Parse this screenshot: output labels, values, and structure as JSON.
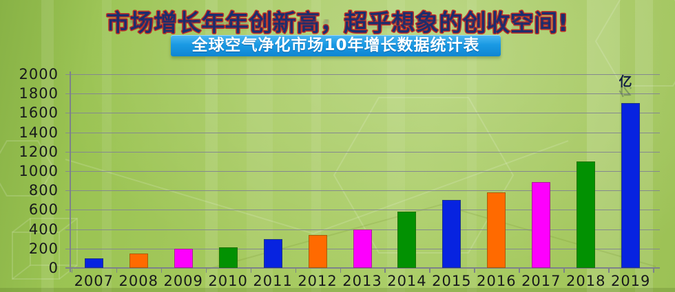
{
  "title": {
    "text": "市场增长年年创新高，超乎想象的创收空间!",
    "color": "#1c2d6d",
    "outline_color": "#c23126"
  },
  "banner": {
    "text": "全球空气净化市场10年增长数据统计表",
    "bg_color": "#1a9ae4",
    "text_color": "#ffffff"
  },
  "chart_data": {
    "type": "bar",
    "title": "全球空气净化市场10年增长数据统计表",
    "unit_label": "亿",
    "categories": [
      "2007",
      "2008",
      "2009",
      "2010",
      "2011",
      "2012",
      "2013",
      "2014",
      "2015",
      "2016",
      "2017",
      "2018",
      "2019"
    ],
    "values": [
      100,
      150,
      200,
      210,
      300,
      340,
      400,
      580,
      700,
      780,
      890,
      1100,
      1700
    ],
    "palette": [
      "#0723e0",
      "#ff6a00",
      "#fd00fd",
      "#029102"
    ],
    "bar_color_sequence": [
      "blue",
      "orange",
      "magenta",
      "green",
      "blue",
      "orange",
      "magenta",
      "green",
      "blue",
      "orange",
      "magenta",
      "green",
      "blue"
    ],
    "y_ticks": [
      0,
      200,
      400,
      600,
      800,
      1000,
      1200,
      1400,
      1600,
      1800,
      2000
    ],
    "ylim": [
      0,
      2000
    ],
    "xlabel": "",
    "ylabel": "",
    "grid": true,
    "grid_color": "#84888f",
    "axis_color": "#7d828a",
    "tick_label_color": "#17191c",
    "legend": "none"
  }
}
